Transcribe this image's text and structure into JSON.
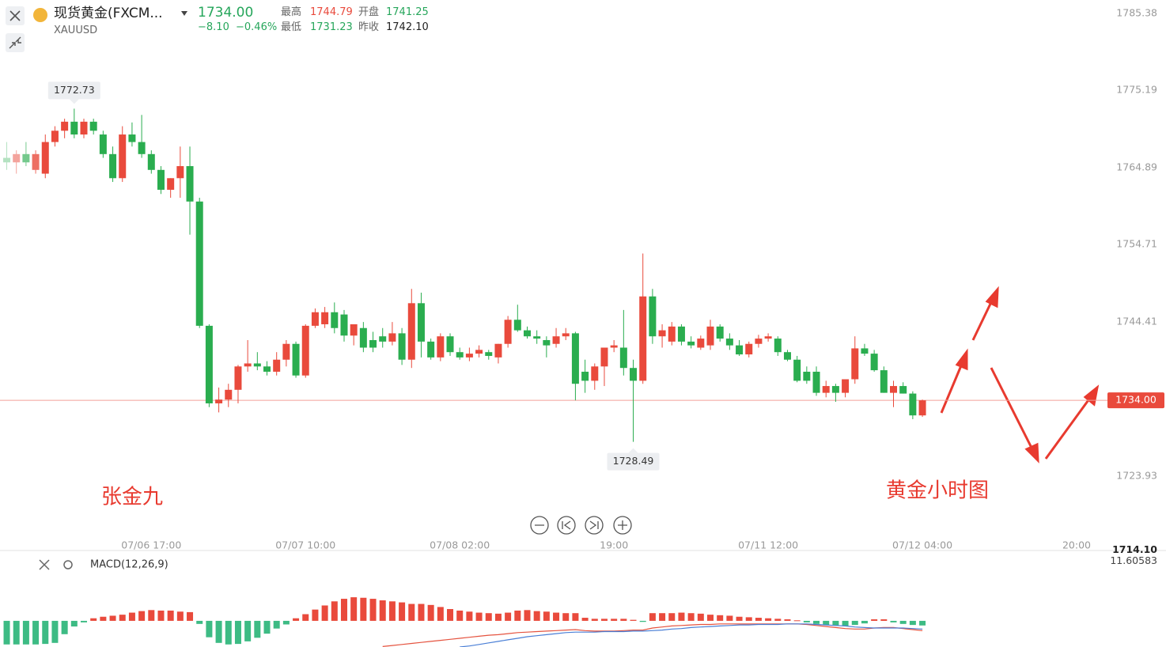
{
  "header": {
    "symbol": "现货黄金(FXCM...",
    "code": "XAUUSD",
    "change": "−8.10",
    "change_pct": "−0.46%",
    "high_label": "最高",
    "high": "1744.79",
    "open_label": "开盘",
    "open": "1741.25",
    "low_label": "最低",
    "low": "1731.23",
    "prev_label": "昨收",
    "prev_close": "1742.10"
  },
  "chart_data": [
    {
      "type": "candlestick",
      "up_color": "#e94a3c",
      "down_color": "#2aad4f",
      "xlim": [
        -0.7,
        114.2
      ],
      "ylim": [
        1714.06,
        1787.16
      ],
      "yticks": [
        1785.38,
        1775.19,
        1764.89,
        1754.71,
        1744.41,
        1723.93,
        {
          "value": 1714.1,
          "label": "1714.10"
        }
      ],
      "xticks": [
        {
          "value": 15,
          "label": "07/06 17:00"
        },
        {
          "value": 31,
          "label": "07/07 10:00"
        },
        {
          "value": 47,
          "label": "07/08 02:00"
        },
        {
          "value": 63,
          "label": "19:00"
        },
        {
          "value": 79,
          "label": "07/11 12:00"
        },
        {
          "value": 95,
          "label": "07/12 04:00"
        },
        {
          "value": 111,
          "label": "20:00"
        }
      ],
      "current_price": {
        "value": 1734,
        "label": "1734.00"
      },
      "annotations": [
        "张金九",
        "黄金小时图"
      ],
      "open": [
        1766.2,
        1765.6,
        1766.7,
        1764.6,
        1764.1,
        1768.3,
        1769.8,
        1771.0,
        1769.3,
        1771.0,
        1769.3,
        1766.7,
        1763.5,
        1769.3,
        1768.3,
        1766.7,
        1764.6,
        1761.96,
        1763.5,
        1765.1,
        1760.4,
        1743.9,
        1733.6,
        1734.1,
        1735.4,
        1738.5,
        1738.9,
        1738.5,
        1737.8,
        1739.4,
        1741.5,
        1737.3,
        1743.9,
        1744.1,
        1745.7,
        1745.4,
        1742.6,
        1743.6,
        1742.0,
        1742.5,
        1741.8,
        1742.9,
        1739.4,
        1746.9,
        1741.8,
        1739.7,
        1742.5,
        1740.4,
        1739.7,
        1740.2,
        1740.4,
        1739.7,
        1741.5,
        1744.7,
        1743.3,
        1742.5,
        1742.0,
        1741.5,
        1742.5,
        1742.9,
        1737.8,
        1736.6,
        1738.5,
        1741.0,
        1741.0,
        1738.3,
        1736.6,
        1747.8,
        1742.5,
        1741.8,
        1743.8,
        1741.8,
        1741.0,
        1741.3,
        1743.8,
        1742.2,
        1741.3,
        1740.1,
        1741.5,
        1742.2,
        1742.2,
        1740.4,
        1739.4,
        1737.8,
        1737.8,
        1735.0,
        1735.9,
        1735.0,
        1736.8,
        1740.9,
        1740.2,
        1738.0,
        1735.0,
        1735.9,
        1734.9,
        1732.0
      ],
      "high": [
        1768.3,
        1767.2,
        1768.3,
        1767.2,
        1769.3,
        1770.4,
        1771.4,
        1772.73,
        1771.4,
        1771.4,
        1769.8,
        1767.7,
        1770.4,
        1770.9,
        1771.9,
        1767.2,
        1765.1,
        1763.5,
        1767.7,
        1767.7,
        1760.9,
        1744.1,
        1735.7,
        1736.2,
        1738.7,
        1742.0,
        1740.4,
        1739.2,
        1740.4,
        1742.0,
        1741.8,
        1744.1,
        1746.2,
        1746.4,
        1747.0,
        1746.0,
        1744.1,
        1744.4,
        1743.1,
        1743.6,
        1744.4,
        1743.6,
        1748.8,
        1748.3,
        1742.2,
        1742.9,
        1742.9,
        1741.0,
        1741.0,
        1741.3,
        1740.7,
        1741.5,
        1745.2,
        1746.7,
        1743.8,
        1743.3,
        1742.5,
        1743.6,
        1743.6,
        1743.1,
        1739.4,
        1738.9,
        1741.0,
        1742.0,
        1746.0,
        1739.4,
        1753.5,
        1748.8,
        1744.1,
        1744.4,
        1744.1,
        1742.5,
        1742.6,
        1744.7,
        1744.1,
        1742.9,
        1742.0,
        1741.8,
        1742.7,
        1742.9,
        1742.5,
        1740.7,
        1739.9,
        1738.5,
        1738.5,
        1736.6,
        1736.2,
        1736.8,
        1742.5,
        1741.5,
        1740.7,
        1738.5,
        1736.6,
        1736.4,
        1735.2,
        1734.1
      ],
      "low": [
        1764.6,
        1764.1,
        1765.1,
        1764.1,
        1763.5,
        1767.7,
        1768.8,
        1768.8,
        1768.8,
        1769.3,
        1766.2,
        1763.0,
        1763.0,
        1767.7,
        1766.2,
        1764.1,
        1761.4,
        1760.9,
        1760.9,
        1756.0,
        1743.6,
        1733.1,
        1732.4,
        1733.1,
        1733.6,
        1737.8,
        1738.0,
        1737.3,
        1737.3,
        1738.5,
        1737.0,
        1737.0,
        1743.6,
        1743.6,
        1742.9,
        1741.8,
        1741.3,
        1740.4,
        1740.4,
        1741.0,
        1741.3,
        1738.7,
        1738.3,
        1739.7,
        1739.4,
        1739.2,
        1739.9,
        1739.4,
        1739.2,
        1739.7,
        1739.4,
        1738.9,
        1741.0,
        1743.1,
        1742.2,
        1741.5,
        1739.7,
        1741.0,
        1742.0,
        1734.0,
        1735.0,
        1735.4,
        1735.9,
        1740.4,
        1737.3,
        1728.49,
        1736.2,
        1741.5,
        1741.0,
        1741.3,
        1741.3,
        1740.9,
        1740.7,
        1740.7,
        1741.8,
        1740.7,
        1739.9,
        1739.7,
        1741.0,
        1741.8,
        1739.9,
        1739.2,
        1736.4,
        1736.2,
        1734.6,
        1734.4,
        1733.8,
        1734.4,
        1736.2,
        1739.9,
        1737.8,
        1735.0,
        1733.1,
        1734.9,
        1731.5,
        1731.8
      ],
      "close": [
        1765.6,
        1766.7,
        1765.6,
        1766.7,
        1768.3,
        1769.8,
        1771.0,
        1769.3,
        1771.0,
        1769.8,
        1766.7,
        1763.5,
        1769.3,
        1768.3,
        1766.7,
        1764.6,
        1761.96,
        1763.5,
        1765.1,
        1760.4,
        1743.9,
        1733.6,
        1734.1,
        1735.4,
        1738.5,
        1738.9,
        1738.5,
        1737.8,
        1739.4,
        1741.5,
        1737.3,
        1743.9,
        1745.7,
        1745.7,
        1743.6,
        1742.6,
        1744.1,
        1741.0,
        1741.0,
        1741.8,
        1742.9,
        1739.4,
        1746.9,
        1741.8,
        1739.7,
        1742.5,
        1740.4,
        1739.7,
        1740.2,
        1740.7,
        1739.9,
        1741.5,
        1744.7,
        1743.3,
        1742.5,
        1742.2,
        1741.3,
        1742.5,
        1742.9,
        1736.2,
        1736.6,
        1738.5,
        1741.0,
        1741.3,
        1738.3,
        1736.6,
        1747.8,
        1742.5,
        1743.3,
        1743.8,
        1741.8,
        1741.3,
        1742.2,
        1743.8,
        1742.2,
        1741.3,
        1740.1,
        1741.5,
        1742.2,
        1742.5,
        1740.4,
        1739.4,
        1736.6,
        1736.6,
        1735.0,
        1735.9,
        1735.0,
        1736.8,
        1740.9,
        1740.2,
        1738.0,
        1735.0,
        1735.9,
        1734.9,
        1732.0,
        1734.0
      ]
    },
    {
      "type": "macd",
      "title": "MACD(12,26,9)",
      "xlim": [
        -0.7,
        114.2
      ],
      "ylim": [
        -5.1,
        13.1
      ],
      "yticks": [
        11.60583
      ],
      "series": [
        {
          "kind": "bar",
          "color": "#e94a3c",
          "down_color": "#3dbb84",
          "values": [
            -4.6,
            -4.6,
            -4.6,
            -4.6,
            -4.5,
            -4.3,
            -2.6,
            -1.1,
            -0.3,
            0.5,
            0.8,
            1.0,
            1.2,
            1.6,
            1.9,
            2.1,
            2.0,
            2.0,
            1.8,
            1.7,
            -0.6,
            -3.2,
            -4.3,
            -4.6,
            -4.5,
            -4.0,
            -3.3,
            -2.5,
            -1.5,
            -0.7,
            0.5,
            1.3,
            2.2,
            3.0,
            3.8,
            4.3,
            4.6,
            4.5,
            4.3,
            4.0,
            3.8,
            3.6,
            3.3,
            3.3,
            3.1,
            2.7,
            2.3,
            2.0,
            1.8,
            1.6,
            1.5,
            1.4,
            1.6,
            2.0,
            2.1,
            1.9,
            1.8,
            1.6,
            1.5,
            1.5,
            0.6,
            0.4,
            0.4,
            0.4,
            0.4,
            0.2,
            -0.2,
            1.5,
            1.5,
            1.5,
            1.6,
            1.5,
            1.4,
            1.2,
            1.1,
            1.0,
            0.8,
            0.7,
            0.6,
            0.5,
            0.4,
            0.3,
            0.1,
            -0.3,
            -0.6,
            -0.8,
            -0.9,
            -1.0,
            -0.8,
            -0.5,
            0.3,
            0.3,
            -0.3,
            -0.6,
            -0.8,
            -0.9
          ]
        },
        {
          "kind": "line",
          "color": "#e5533f",
          "values": [
            null,
            null,
            null,
            null,
            null,
            null,
            null,
            null,
            null,
            null,
            null,
            null,
            null,
            null,
            null,
            null,
            null,
            null,
            null,
            null,
            null,
            null,
            null,
            null,
            null,
            null,
            null,
            null,
            null,
            null,
            null,
            null,
            null,
            null,
            null,
            null,
            null,
            null,
            null,
            -5.0,
            -4.8,
            -4.6,
            -4.4,
            -4.2,
            -4.0,
            -3.8,
            -3.6,
            -3.4,
            -3.2,
            -3.0,
            -2.8,
            -2.7,
            -2.5,
            -2.3,
            -2.2,
            -2.1,
            -2.0,
            -1.9,
            -1.8,
            -1.7,
            -1.9,
            -2.0,
            -2.0,
            -2.0,
            -1.9,
            -1.8,
            -1.8,
            -1.4,
            -1.2,
            -1.0,
            -0.9,
            -0.8,
            -0.7,
            -0.7,
            -0.6,
            -0.6,
            -0.6,
            -0.6,
            -0.6,
            -0.6,
            -0.6,
            -0.6,
            -0.6,
            -0.7,
            -0.9,
            -1.1,
            -1.3,
            -1.5,
            -1.6,
            -1.6,
            -1.4,
            -1.3,
            -1.3,
            -1.5,
            -1.7,
            -1.9
          ]
        },
        {
          "kind": "line",
          "color": "#4a7fd6",
          "values": [
            null,
            null,
            null,
            null,
            null,
            null,
            null,
            null,
            null,
            null,
            null,
            null,
            null,
            null,
            null,
            null,
            null,
            null,
            null,
            null,
            null,
            null,
            null,
            null,
            null,
            null,
            null,
            null,
            null,
            null,
            null,
            null,
            null,
            null,
            null,
            null,
            null,
            null,
            null,
            null,
            null,
            null,
            null,
            null,
            null,
            null,
            null,
            -5.1,
            -4.9,
            -4.6,
            -4.3,
            -4.0,
            -3.7,
            -3.4,
            -3.1,
            -2.9,
            -2.7,
            -2.5,
            -2.3,
            -2.2,
            -2.2,
            -2.2,
            -2.1,
            -2.1,
            -2.1,
            -2.0,
            -2.0,
            -1.9,
            -1.8,
            -1.6,
            -1.5,
            -1.3,
            -1.2,
            -1.1,
            -1.0,
            -0.9,
            -0.8,
            -0.8,
            -0.7,
            -0.7,
            -0.7,
            -0.6,
            -0.6,
            -0.6,
            -0.7,
            -0.8,
            -0.9,
            -1.0,
            -1.2,
            -1.3,
            -1.4,
            -1.4,
            -1.4,
            -1.4,
            -1.5,
            -1.6
          ]
        }
      ]
    }
  ]
}
